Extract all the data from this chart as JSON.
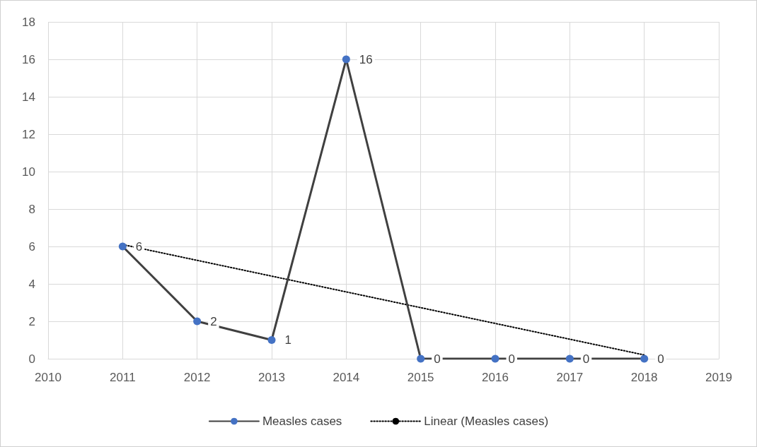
{
  "chart_data": {
    "type": "line",
    "xlim": [
      2010,
      2019
    ],
    "xticks": [
      2010,
      2011,
      2012,
      2013,
      2014,
      2015,
      2016,
      2017,
      2018,
      2019
    ],
    "ylim": [
      0,
      18
    ],
    "yticks": [
      0,
      2,
      4,
      6,
      8,
      10,
      12,
      14,
      16,
      18
    ],
    "grid": true,
    "legend": "bottom",
    "series": [
      {
        "name": "Measles cases",
        "color": "#4472c4",
        "x": [
          2011,
          2012,
          2013,
          2014,
          2015,
          2016,
          2017,
          2018
        ],
        "values": [
          6,
          2,
          1,
          16,
          0,
          0,
          0,
          0
        ],
        "marker": "circle",
        "line_style": "solid",
        "data_labels": true
      },
      {
        "name": "Linear (Measles cases)",
        "type": "line",
        "color": "#000000",
        "x": [
          2011,
          2018
        ],
        "values": [
          6.1,
          0.2
        ],
        "marker": "none",
        "line_style": "dotted"
      }
    ]
  }
}
